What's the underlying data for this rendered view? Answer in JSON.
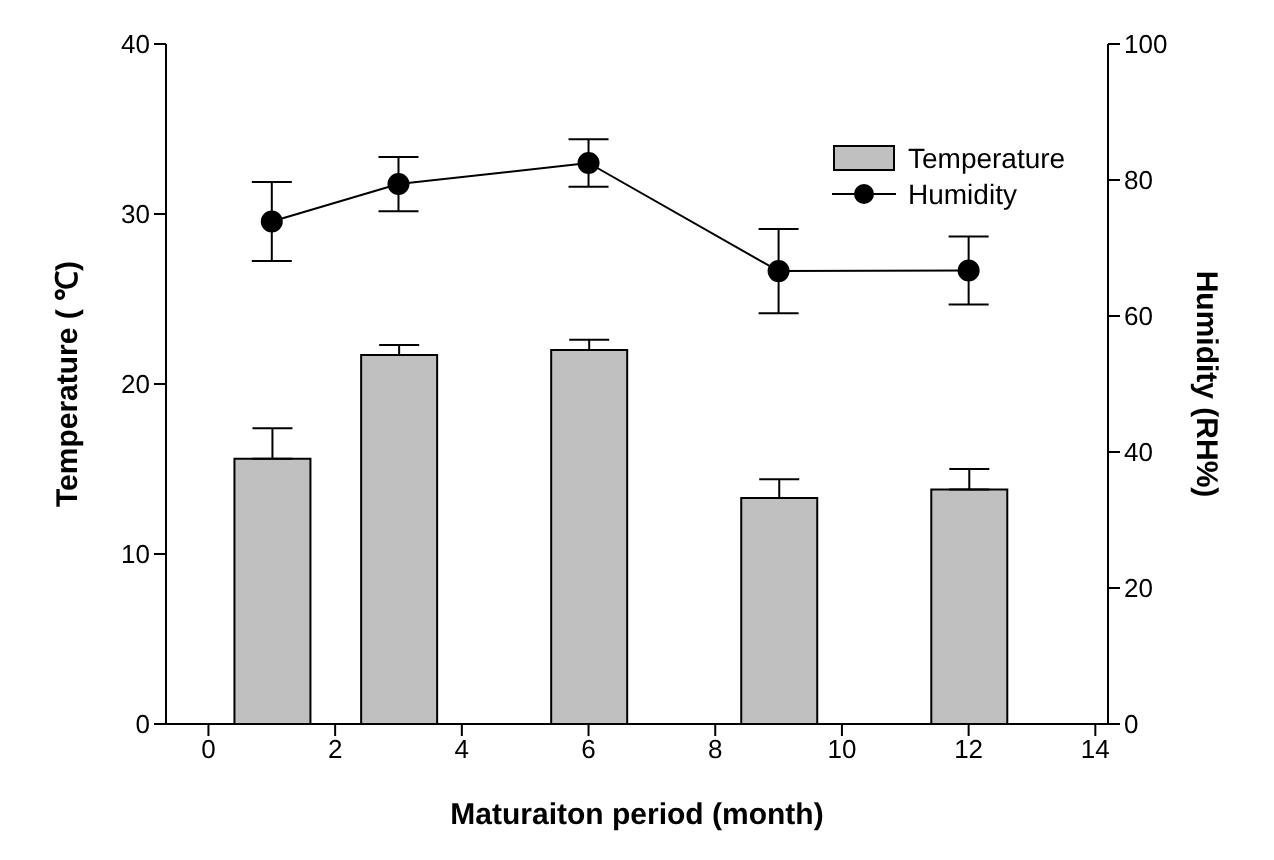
{
  "chart_data": {
    "type": "bar",
    "xlabel": "Maturaiton period (month)",
    "ylabel": "Temperature ( ℃)",
    "y2label": "Humidity (RH%)",
    "x": [
      1,
      3,
      6,
      9,
      12
    ],
    "series": [
      {
        "name": "Temperature",
        "color": "#c0c0c0",
        "values": [
          15.6,
          21.7,
          22.0,
          13.3,
          13.8
        ],
        "errors": [
          1.8,
          0.6,
          0.6,
          1.1,
          1.2
        ]
      },
      {
        "name": "Humidity",
        "type": "line",
        "axis": "y2",
        "color": "#000000",
        "values": [
          73.9,
          79.4,
          82.5,
          66.6,
          66.7
        ],
        "errors": [
          5.8,
          4,
          3.5,
          6.2,
          5
        ]
      }
    ],
    "xlim": [
      -0.67,
      14.2
    ],
    "xticks": [
      0,
      2,
      4,
      6,
      8,
      10,
      12,
      14
    ],
    "ylim": [
      0,
      40
    ],
    "yticks": [
      0,
      10,
      20,
      30,
      40
    ],
    "y2lim": [
      0,
      100
    ],
    "y2ticks": [
      0,
      20,
      40,
      60,
      80,
      100
    ],
    "legend": "top right",
    "marker": "circle",
    "line_style": "solid",
    "grid": false
  }
}
